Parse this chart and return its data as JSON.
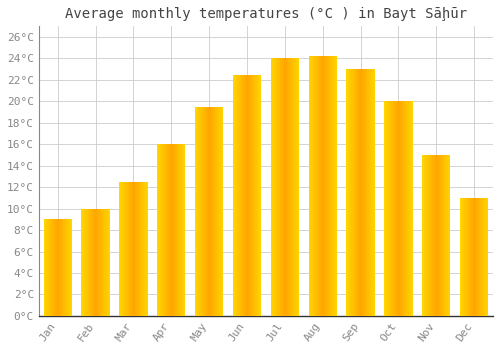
{
  "title": "Average monthly temperatures (°C ) in Bayt Sāḩūr",
  "months": [
    "Jan",
    "Feb",
    "Mar",
    "Apr",
    "May",
    "Jun",
    "Jul",
    "Aug",
    "Sep",
    "Oct",
    "Nov",
    "Dec"
  ],
  "temperatures": [
    9,
    10,
    12.5,
    16,
    19.5,
    22.5,
    24,
    24.2,
    23,
    20,
    15,
    11
  ],
  "bar_color_center": "#FFA500",
  "bar_color_edge": "#FFD700",
  "background_color": "#FFFFFF",
  "grid_color": "#CCCCCC",
  "ylim": [
    0,
    27
  ],
  "yticks": [
    0,
    2,
    4,
    6,
    8,
    10,
    12,
    14,
    16,
    18,
    20,
    22,
    24,
    26
  ],
  "title_fontsize": 10,
  "tick_fontsize": 8,
  "tick_color": "#888888",
  "title_color": "#444444",
  "bar_width": 0.75
}
